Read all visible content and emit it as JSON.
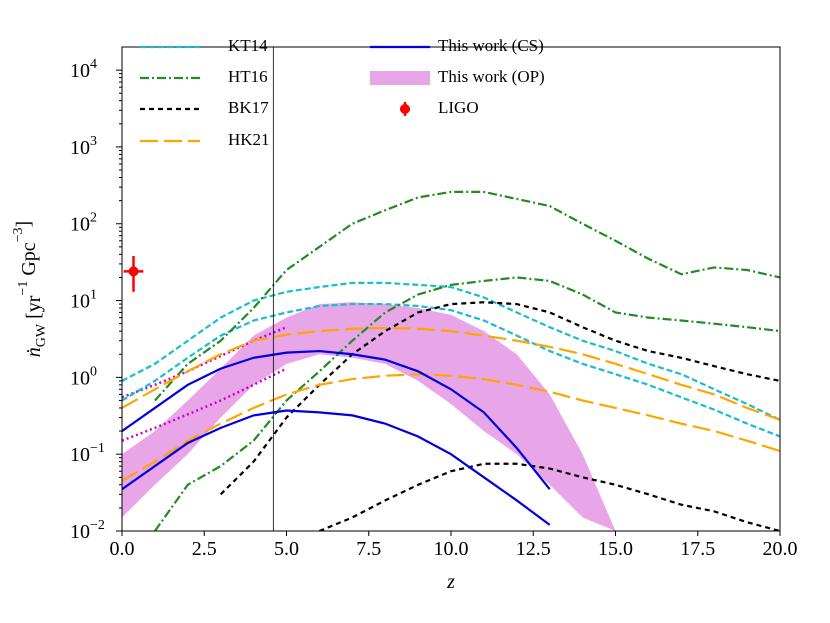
{
  "chart_data": {
    "type": "line",
    "log_y": true,
    "xlabel": "z",
    "ylabel": [
      {
        "t": "ṅ"
      },
      {
        "t": "GW",
        "sub": true
      },
      {
        "t": " [yr"
      },
      {
        "t": "−1",
        "sup": true
      },
      {
        "t": " Gpc"
      },
      {
        "t": "−3",
        "sup": true
      },
      {
        "t": "]"
      }
    ],
    "xlim": [
      0,
      20
    ],
    "ylim": [
      0.01,
      20000
    ],
    "xticks": [
      {
        "value": 0,
        "label": "0.0"
      },
      {
        "value": 2.5,
        "label": "2.5"
      },
      {
        "value": 5,
        "label": "5.0"
      },
      {
        "value": 7.5,
        "label": "7.5"
      },
      {
        "value": 10,
        "label": "10.0"
      },
      {
        "value": 12.5,
        "label": "12.5"
      },
      {
        "value": 15,
        "label": "15.0"
      },
      {
        "value": 17.5,
        "label": "17.5"
      },
      {
        "value": 20,
        "label": "20.0"
      }
    ],
    "yticks": [
      {
        "value": 0.01,
        "label": "10",
        "exp": "−2"
      },
      {
        "value": 0.1,
        "label": "10",
        "exp": "−1"
      },
      {
        "value": 1,
        "label": "10",
        "exp": "0"
      },
      {
        "value": 10,
        "label": "10",
        "exp": "1"
      },
      {
        "value": 100,
        "label": "10",
        "exp": "2"
      },
      {
        "value": 1000,
        "label": "10",
        "exp": "3"
      },
      {
        "value": 10000,
        "label": "10",
        "exp": "4"
      }
    ],
    "vline": 4.6,
    "x": [
      0,
      1,
      2,
      3,
      4,
      5,
      6,
      7,
      8,
      9,
      10,
      11,
      12,
      13,
      14,
      15,
      16,
      17,
      18,
      19,
      20
    ],
    "series": [
      {
        "name": "KT14",
        "color": "#17becf",
        "dash": "6,3",
        "kind": "pair",
        "upper": [
          0.9,
          1.5,
          3,
          6,
          10,
          13,
          15,
          17,
          17,
          16,
          15,
          11,
          7,
          4.5,
          3,
          2.2,
          1.5,
          1.1,
          0.7,
          0.45,
          0.28
        ],
        "lower": [
          0.5,
          0.9,
          1.8,
          3.5,
          5.5,
          7,
          8.5,
          9,
          9,
          8.5,
          7.5,
          5.5,
          3.5,
          2.2,
          1.5,
          1.1,
          0.8,
          0.55,
          0.38,
          0.25,
          0.17
        ]
      },
      {
        "name": "HT16",
        "color": "#228b22",
        "dash": "9,3,2,3",
        "kind": "pair",
        "upper": [
          null,
          0.5,
          1.5,
          3,
          8,
          25,
          50,
          100,
          150,
          220,
          260,
          260,
          210,
          170,
          100,
          60,
          35,
          22,
          27,
          25,
          20
        ],
        "lower": [
          null,
          0.01,
          0.04,
          0.07,
          0.15,
          0.5,
          1.2,
          3,
          7,
          12,
          16,
          18,
          20,
          18,
          12,
          7,
          6,
          5.5,
          5,
          4.5,
          4
        ]
      },
      {
        "name": "BK17",
        "color": "#000000",
        "dash": "5,4",
        "kind": "pair",
        "upper": [
          null,
          null,
          null,
          0.03,
          0.08,
          0.3,
          0.8,
          2,
          4,
          7,
          9,
          9.5,
          9,
          7,
          4.5,
          3,
          2.2,
          1.8,
          1.4,
          1.1,
          0.9
        ],
        "lower": [
          null,
          null,
          null,
          null,
          null,
          null,
          0.01,
          0.015,
          0.025,
          0.04,
          0.06,
          0.075,
          0.075,
          0.065,
          0.05,
          0.04,
          0.03,
          0.022,
          0.018,
          0.013,
          0.01
        ]
      },
      {
        "name": "HK21",
        "color": "#ffa500",
        "dash": "18,6",
        "kind": "pair",
        "upper": [
          0.4,
          0.7,
          1.2,
          2,
          3,
          3.6,
          4,
          4.3,
          4.4,
          4.3,
          4,
          3.5,
          3,
          2.5,
          2,
          1.5,
          1.1,
          0.8,
          0.6,
          0.4,
          0.28
        ],
        "lower": [
          0.045,
          0.08,
          0.15,
          0.25,
          0.4,
          0.6,
          0.8,
          0.95,
          1.05,
          1.1,
          1.05,
          0.95,
          0.8,
          0.65,
          0.5,
          0.4,
          0.32,
          0.25,
          0.2,
          0.15,
          0.11
        ]
      },
      {
        "name": "This work (CS)",
        "color": "#0000dd",
        "dash": "",
        "kind": "pair",
        "upper": [
          0.2,
          0.4,
          0.8,
          1.3,
          1.8,
          2.1,
          2.2,
          2,
          1.7,
          1.2,
          0.7,
          0.35,
          0.12,
          0.035,
          null,
          null,
          null,
          null,
          null,
          null,
          null
        ],
        "lower": [
          0.035,
          0.07,
          0.14,
          0.22,
          0.32,
          0.37,
          0.35,
          0.32,
          0.25,
          0.17,
          0.1,
          0.05,
          0.025,
          0.012,
          null,
          null,
          null,
          null,
          null,
          null,
          null
        ]
      },
      {
        "name": "This work (OP)",
        "color": "#e8a6e8",
        "kind": "band",
        "upper": [
          0.1,
          0.2,
          0.5,
          1.3,
          3.5,
          6,
          9,
          9.5,
          9,
          8,
          6.5,
          4,
          2,
          0.6,
          0.1,
          0.01,
          null,
          null,
          null,
          null,
          null
        ],
        "lower": [
          0.015,
          0.04,
          0.1,
          0.3,
          0.8,
          1.5,
          2,
          1.8,
          1.5,
          0.9,
          0.45,
          0.2,
          0.1,
          0.04,
          0.015,
          0.01,
          null,
          null,
          null,
          null,
          null
        ]
      }
    ],
    "extra_lines": {
      "color": "#cc00cc",
      "x": [
        0,
        1,
        2,
        3,
        4,
        5
      ],
      "upper": [
        0.55,
        0.8,
        1.2,
        1.9,
        3,
        4.5
      ],
      "lower": [
        0.15,
        0.22,
        0.33,
        0.5,
        0.8,
        1.3
      ]
    },
    "ligo": {
      "name": "LIGO",
      "color": "#ff0000",
      "x": 0.35,
      "xerr": 0.3,
      "y": 24,
      "yerr": [
        11,
        14
      ]
    }
  }
}
